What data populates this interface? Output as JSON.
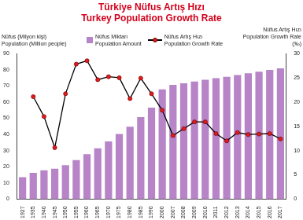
{
  "chart_data": {
    "type": "bar",
    "title": "Türkiye Nüfus Artış Hızı\nTurkey Population Growth Rate",
    "y_label": "Nüfus (Milyon kişi)\nPopulation (Million people)",
    "y2_label": "Nüfus Artış Hızı\nPopulation Growth Rate\n(‰)",
    "categories": [
      "1927",
      "1935",
      "1940",
      "1945",
      "1950",
      "1955",
      "1960",
      "1965",
      "1970",
      "1975",
      "1980",
      "1985",
      "1990",
      "2000",
      "2007",
      "2008",
      "2009",
      "2010",
      "2011",
      "2012",
      "2013",
      "2014",
      "2015",
      "2016",
      "2017"
    ],
    "series": [
      {
        "name": "Nüfus Miktarı\nPopulation Amount",
        "type": "bar",
        "color": "#b784c7",
        "values": [
          13.6,
          16.2,
          17.8,
          18.8,
          20.9,
          24.1,
          27.8,
          31.4,
          35.6,
          40.3,
          44.7,
          50.7,
          56.5,
          67.8,
          70.6,
          71.5,
          72.6,
          73.7,
          74.7,
          75.6,
          76.7,
          77.7,
          78.7,
          79.8,
          80.8
        ]
      },
      {
        "name": "Nüfus Artış Hızı\nPopulation Growth Rate",
        "type": "line",
        "axis": "y2",
        "color": "#e31a1c",
        "marker": "circle",
        "values": [
          null,
          21.1,
          17.0,
          10.6,
          21.7,
          27.8,
          28.5,
          24.6,
          25.2,
          25.0,
          20.7,
          24.9,
          21.7,
          18.3,
          13.1,
          14.5,
          15.9,
          15.9,
          13.5,
          12.0,
          13.7,
          13.3,
          13.4,
          13.5,
          12.4
        ]
      }
    ],
    "ylim": [
      0,
      90
    ],
    "yticks": [
      0,
      10,
      20,
      30,
      40,
      50,
      60,
      70,
      80,
      90
    ],
    "y2lim": [
      0,
      30
    ],
    "y2ticks": [
      0,
      5,
      10,
      15,
      20,
      25,
      30
    ],
    "grid": false,
    "legend": "top"
  }
}
